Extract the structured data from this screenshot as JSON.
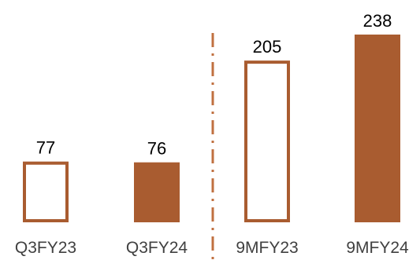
{
  "chart_data": {
    "type": "bar",
    "title": "",
    "xlabel": "",
    "ylabel": "",
    "categories": [
      "Q3FY23",
      "Q3FY24",
      "9MFY23",
      "9MFY24"
    ],
    "values": [
      77,
      76,
      205,
      238
    ],
    "value_labels": [
      "77",
      "76",
      "205",
      "238"
    ],
    "bar_styles": [
      "outline",
      "filled",
      "outline",
      "filled"
    ],
    "ylim": [
      0,
      238
    ],
    "grid": false,
    "legend": "none",
    "separator": "dash-dot vertical line between Q3FY24 and 9MFY23",
    "colors": {
      "bar": "#A95C30",
      "separator": "#C07040",
      "text": "#000000",
      "category_text": "#404040"
    }
  }
}
